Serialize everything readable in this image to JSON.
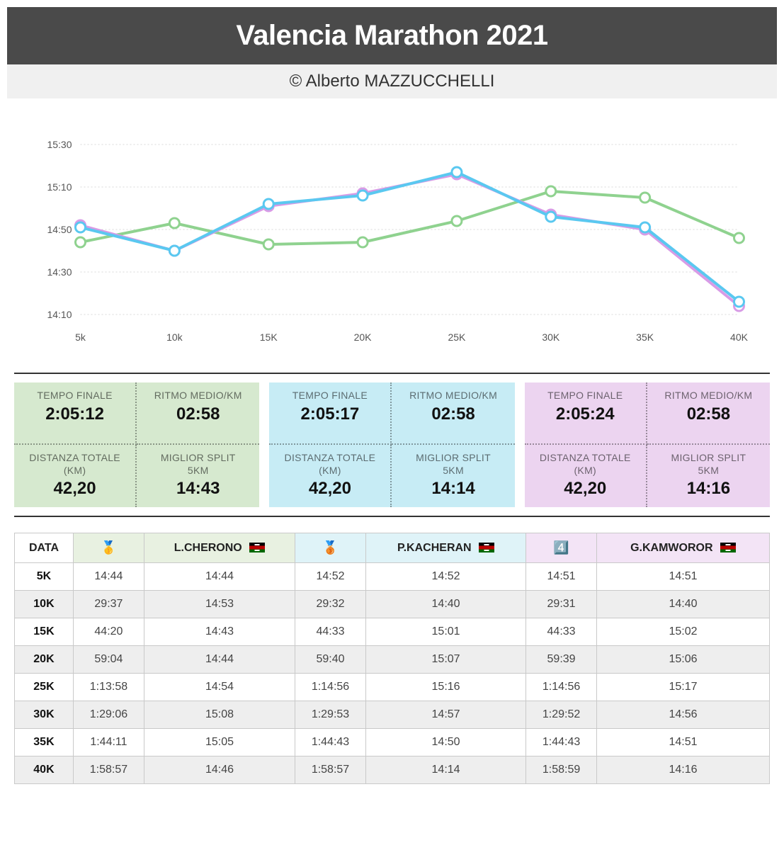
{
  "header": {
    "title": "Valencia Marathon 2021",
    "subtitle": "© Alberto MAZZUCCHELLI"
  },
  "chart": {
    "type": "line",
    "x_labels": [
      "5k",
      "10k",
      "15K",
      "20K",
      "25K",
      "30K",
      "35K",
      "40K"
    ],
    "y_ticks": [
      "14:10",
      "14:30",
      "14:50",
      "15:10",
      "15:30"
    ],
    "y_tick_seconds": [
      850,
      870,
      890,
      910,
      930
    ],
    "ylim_seconds": [
      845,
      935
    ],
    "series": [
      {
        "name": "green",
        "color": "#8fd28f",
        "marker_fill": "#ffffff",
        "values_sec": [
          884,
          893,
          883,
          884,
          894,
          908,
          905,
          886
        ]
      },
      {
        "name": "purple",
        "color": "#d89be6",
        "marker_fill": "#ffffff",
        "values_sec": [
          892,
          880,
          901,
          907,
          916,
          897,
          890,
          854
        ]
      },
      {
        "name": "blue",
        "color": "#5ac8f0",
        "marker_fill": "#ffffff",
        "values_sec": [
          891,
          880,
          902,
          906,
          917,
          896,
          891,
          856
        ]
      }
    ],
    "grid_color": "#d8d8d8",
    "axis_font_size": 14,
    "marker_radius": 7,
    "line_width": 4
  },
  "stats": [
    {
      "bg": "#d6e9cf",
      "tempo_l": "TEMPO FINALE",
      "tempo_v": "2:05:12",
      "ritmo_l": "RITMO MEDIO/KM",
      "ritmo_v": "02:58",
      "dist_l": "DISTANZA TOTALE (KM)",
      "dist_v": "42,20",
      "split_l": "MIGLIOR SPLIT 5KM",
      "split_v": "14:43"
    },
    {
      "bg": "#c7ecf5",
      "tempo_l": "TEMPO FINALE",
      "tempo_v": "2:05:17",
      "ritmo_l": "RITMO MEDIO/KM",
      "ritmo_v": "02:58",
      "dist_l": "DISTANZA TOTALE (KM)",
      "dist_v": "42,20",
      "split_l": "MIGLIOR SPLIT 5KM",
      "split_v": "14:14"
    },
    {
      "bg": "#ecd4f0",
      "tempo_l": "TEMPO FINALE",
      "tempo_v": "2:05:24",
      "ritmo_l": "RITMO MEDIO/KM",
      "ritmo_v": "02:58",
      "dist_l": "DISTANZA TOTALE (KM)",
      "dist_v": "42,20",
      "split_l": "MIGLIOR SPLIT 5KM",
      "split_v": "14:16"
    }
  ],
  "table": {
    "head": {
      "data": "DATA",
      "medal1": "🥇",
      "name1": "L.CHERONO",
      "medal2": "🥉",
      "name2": "P.KACHERAN",
      "medal3": "4️⃣",
      "name3": "G.KAMWOROR"
    },
    "head_bg": [
      "#e8f1e1",
      "#e8f1e1",
      "#dff3f8",
      "#dff3f8",
      "#f3e4f6",
      "#f3e4f6"
    ],
    "rows": [
      {
        "k": "5K",
        "a": "14:44",
        "b": "14:44",
        "c": "14:52",
        "d": "14:52",
        "e": "14:51",
        "f": "14:51"
      },
      {
        "k": "10K",
        "a": "29:37",
        "b": "14:53",
        "c": "29:32",
        "d": "14:40",
        "e": "29:31",
        "f": "14:40"
      },
      {
        "k": "15K",
        "a": "44:20",
        "b": "14:43",
        "c": "44:33",
        "d": "15:01",
        "e": "44:33",
        "f": "15:02"
      },
      {
        "k": "20K",
        "a": "59:04",
        "b": "14:44",
        "c": "59:40",
        "d": "15:07",
        "e": "59:39",
        "f": "15:06"
      },
      {
        "k": "25K",
        "a": "1:13:58",
        "b": "14:54",
        "c": "1:14:56",
        "d": "15:16",
        "e": "1:14:56",
        "f": "15:17"
      },
      {
        "k": "30K",
        "a": "1:29:06",
        "b": "15:08",
        "c": "1:29:53",
        "d": "14:57",
        "e": "1:29:52",
        "f": "14:56"
      },
      {
        "k": "35K",
        "a": "1:44:11",
        "b": "15:05",
        "c": "1:44:43",
        "d": "14:50",
        "e": "1:44:43",
        "f": "14:51"
      },
      {
        "k": "40K",
        "a": "1:58:57",
        "b": "14:46",
        "c": "1:58:57",
        "d": "14:14",
        "e": "1:58:59",
        "f": "14:16"
      }
    ]
  }
}
